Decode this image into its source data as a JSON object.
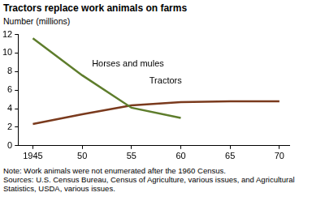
{
  "chart_data": {
    "type": "line",
    "title": "Tractors replace work animals on farms",
    "y_label": "Number (millions)",
    "x": [
      1945,
      1950,
      1955,
      1960,
      1965,
      1970
    ],
    "series": [
      {
        "name": "Horses and mules",
        "color": "#5e7d2c",
        "values": [
          11.6,
          7.6,
          4.1,
          3.0,
          null,
          null
        ]
      },
      {
        "name": "Tractors",
        "color": "#7a3a1d",
        "values": [
          2.35,
          3.4,
          4.35,
          4.7,
          4.8,
          4.8
        ]
      }
    ],
    "xlim": [
      1943.5,
      1971
    ],
    "xticks": [
      1945,
      {
        "value": 1950,
        "label": "50"
      },
      {
        "value": 1955,
        "label": "55"
      },
      {
        "value": 1960,
        "label": "60"
      },
      {
        "value": 1965,
        "label": "65"
      },
      {
        "value": 1970,
        "label": "70"
      }
    ],
    "ylim": [
      0,
      12
    ],
    "yticks": [
      0,
      2,
      4,
      6,
      8,
      10,
      12
    ],
    "grid": false,
    "note": "Note: Work animals were not enumerated after the 1960 Census.",
    "source": "Sources: U.S. Census Bureau, Census of Agriculture, various issues, and Agricultural Statistics, USDA, various issues."
  }
}
